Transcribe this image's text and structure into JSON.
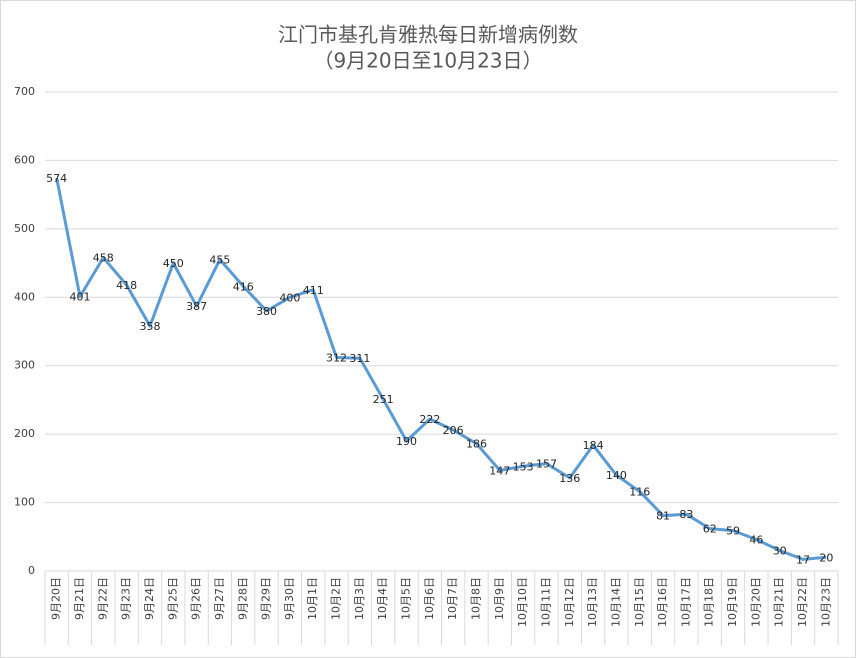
{
  "chart_data": {
    "type": "line",
    "title": "江门市基孔肯雅热每日新增病例数",
    "subtitle": "（9月20日至10月23日）",
    "categories": [
      "9月20日",
      "9月21日",
      "9月22日",
      "9月23日",
      "9月24日",
      "9月25日",
      "9月26日",
      "9月27日",
      "9月28日",
      "9月29日",
      "9月30日",
      "10月1日",
      "10月2日",
      "10月3日",
      "10月4日",
      "10月5日",
      "10月6日",
      "10月7日",
      "10月8日",
      "10月9日",
      "10月10日",
      "10月11日",
      "10月12日",
      "10月13日",
      "10月14日",
      "10月15日",
      "10月16日",
      "10月17日",
      "10月18日",
      "10月19日",
      "10月20日",
      "10月21日",
      "10月22日",
      "10月23日"
    ],
    "values": [
      574,
      401,
      458,
      418,
      358,
      450,
      387,
      455,
      416,
      380,
      400,
      411,
      312,
      311,
      251,
      190,
      222,
      206,
      186,
      147,
      153,
      157,
      136,
      184,
      140,
      116,
      81,
      83,
      62,
      59,
      46,
      30,
      17,
      20
    ],
    "color": "#5b9bd5",
    "ylim": [
      0,
      700
    ],
    "yticks": [
      0,
      100,
      200,
      300,
      400,
      500,
      600,
      700
    ],
    "grid": true
  }
}
